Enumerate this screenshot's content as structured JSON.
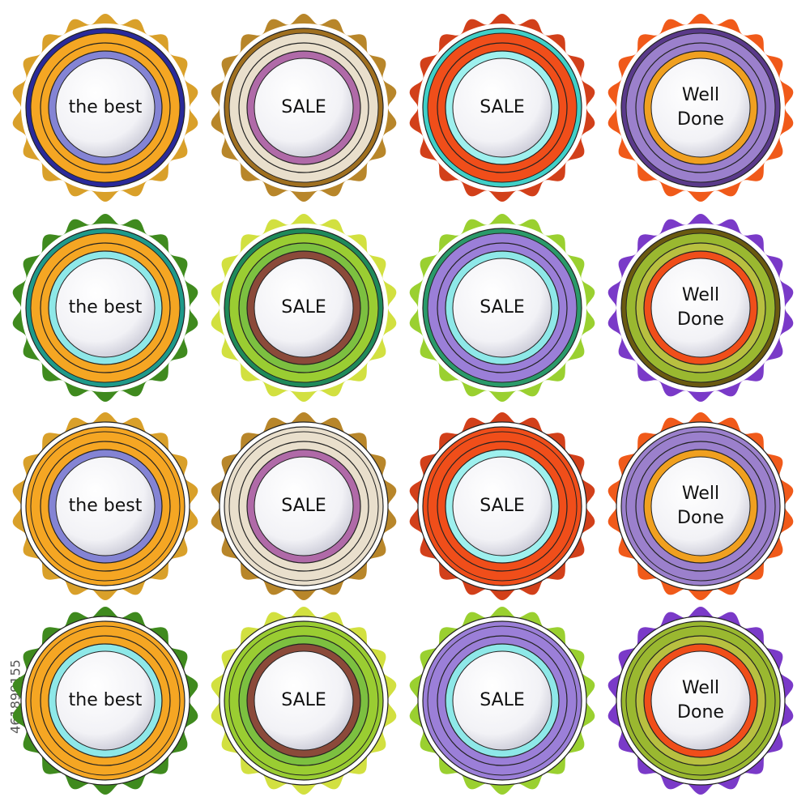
{
  "badges": [
    {
      "lines": [
        "the best"
      ]
    },
    {
      "lines": [
        "SALE"
      ]
    },
    {
      "lines": [
        "SALE"
      ]
    },
    {
      "lines": [
        "Well",
        "Done"
      ]
    },
    {
      "lines": [
        "the best"
      ]
    },
    {
      "lines": [
        "SALE"
      ]
    },
    {
      "lines": [
        "SALE"
      ]
    },
    {
      "lines": [
        "Well",
        "Done"
      ]
    },
    {
      "lines": [
        "the best"
      ]
    },
    {
      "lines": [
        "SALE"
      ]
    },
    {
      "lines": [
        "SALE"
      ]
    },
    {
      "lines": [
        "Well",
        "Done"
      ]
    },
    {
      "lines": [
        "the best"
      ]
    },
    {
      "lines": [
        "SALE"
      ]
    },
    {
      "lines": [
        "SALE"
      ]
    },
    {
      "lines": [
        "Well",
        "Done"
      ]
    }
  ],
  "watermark_id": "461899155"
}
